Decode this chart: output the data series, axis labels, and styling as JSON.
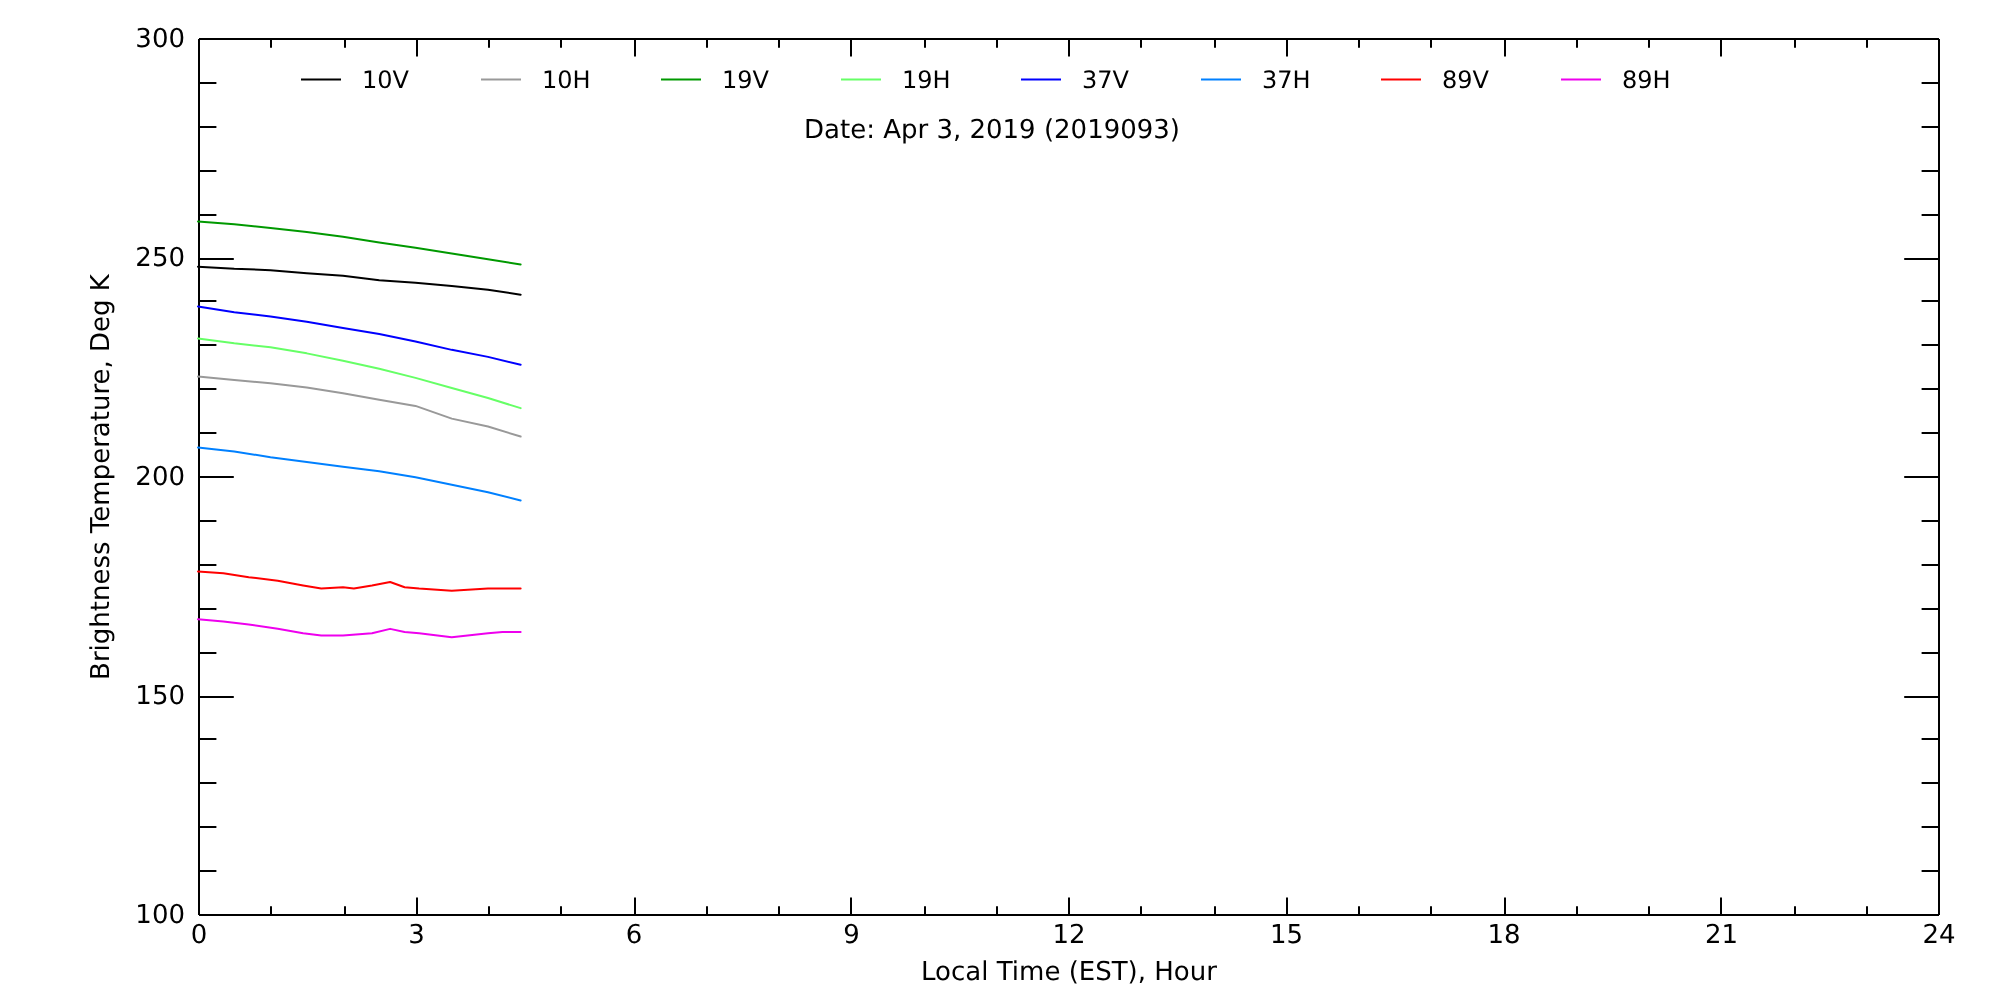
{
  "chart_data": {
    "type": "line",
    "title": "Date: Apr  3, 2019 (2019093)",
    "xlabel": "Local Time (EST), Hour",
    "ylabel": "Brightness Temperature, Deg K",
    "xlim": [
      0,
      24
    ],
    "ylim": [
      100,
      300
    ],
    "xticks": [
      0,
      {
        "value": 1,
        "label": null
      },
      {
        "value": 2,
        "label": null
      },
      3,
      {
        "value": 4,
        "label": null
      },
      {
        "value": 5,
        "label": null
      },
      6,
      {
        "value": 7,
        "label": null
      },
      {
        "value": 8,
        "label": null
      },
      9,
      {
        "value": 10,
        "label": null
      },
      {
        "value": 11,
        "label": null
      },
      12,
      {
        "value": 13,
        "label": null
      },
      {
        "value": 14,
        "label": null
      },
      15,
      {
        "value": 16,
        "label": null
      },
      {
        "value": 17,
        "label": null
      },
      18,
      {
        "value": 19,
        "label": null
      },
      {
        "value": 20,
        "label": null
      },
      21,
      {
        "value": 22,
        "label": null
      },
      {
        "value": 23,
        "label": null
      },
      24
    ],
    "yticks": [
      100,
      {
        "value": 110,
        "label": null
      },
      {
        "value": 120,
        "label": null
      },
      {
        "value": 130,
        "label": null
      },
      {
        "value": 140,
        "label": null
      },
      150,
      {
        "value": 160,
        "label": null
      },
      {
        "value": 170,
        "label": null
      },
      {
        "value": 180,
        "label": null
      },
      {
        "value": 190,
        "label": null
      },
      200,
      {
        "value": 210,
        "label": null
      },
      {
        "value": 220,
        "label": null
      },
      {
        "value": 230,
        "label": null
      },
      {
        "value": 240,
        "label": null
      },
      250,
      {
        "value": 260,
        "label": null
      },
      {
        "value": 270,
        "label": null
      },
      {
        "value": 280,
        "label": null
      },
      {
        "value": 290,
        "label": null
      },
      300
    ],
    "legend": "top",
    "line_style": "solid",
    "series": [
      {
        "name": "10V",
        "color": "#000000",
        "x": [
          0,
          0.5,
          1,
          1.5,
          2,
          2.5,
          3,
          3.5,
          4,
          4.45
        ],
        "values": [
          247.8,
          247.3,
          247.0,
          246.3,
          245.7,
          244.7,
          244.1,
          243.4,
          242.5,
          241.4
        ]
      },
      {
        "name": "10H",
        "color": "#999999",
        "x": [
          0,
          0.5,
          1,
          1.5,
          2,
          2.5,
          3,
          3.5,
          4,
          4.45
        ],
        "values": [
          222.7,
          221.9,
          221.2,
          220.2,
          218.9,
          217.4,
          216.0,
          213.1,
          211.3,
          209.0
        ]
      },
      {
        "name": "19V",
        "color": "#009900",
        "x": [
          0,
          0.5,
          1,
          1.5,
          2,
          2.5,
          3,
          3.5,
          4,
          4.45
        ],
        "values": [
          258.1,
          257.5,
          256.6,
          255.7,
          254.6,
          253.3,
          252.1,
          250.8,
          249.5,
          248.3
        ]
      },
      {
        "name": "19H",
        "color": "#66ff66",
        "x": [
          0,
          0.5,
          1,
          1.5,
          2,
          2.5,
          3,
          3.5,
          4,
          4.45
        ],
        "values": [
          231.4,
          230.3,
          229.4,
          228.0,
          226.3,
          224.5,
          222.4,
          220.1,
          217.8,
          215.5
        ]
      },
      {
        "name": "37V",
        "color": "#0000ff",
        "x": [
          0,
          0.5,
          1,
          1.5,
          2,
          2.5,
          3,
          3.5,
          4,
          4.45
        ],
        "values": [
          238.7,
          237.4,
          236.4,
          235.2,
          233.8,
          232.4,
          230.7,
          228.8,
          227.2,
          225.4
        ]
      },
      {
        "name": "37H",
        "color": "#0080ff",
        "x": [
          0,
          0.5,
          1,
          1.5,
          2,
          2.5,
          3,
          3.5,
          4,
          4.45
        ],
        "values": [
          206.5,
          205.6,
          204.3,
          203.2,
          202.1,
          201.1,
          199.7,
          198.0,
          196.3,
          194.4
        ]
      },
      {
        "name": "89V",
        "color": "#ff0000",
        "x": [
          0,
          0.35,
          0.7,
          1.1,
          1.45,
          1.7,
          2.0,
          2.15,
          2.4,
          2.65,
          2.85,
          3.05,
          3.5,
          4.0,
          4.45
        ],
        "values": [
          178.2,
          177.8,
          176.9,
          176.1,
          175.0,
          174.3,
          174.6,
          174.3,
          175.0,
          175.8,
          174.6,
          174.3,
          173.8,
          174.3,
          174.3
        ]
      },
      {
        "name": "89H",
        "color": "#ee00ee",
        "x": [
          0,
          0.35,
          0.7,
          1.1,
          1.45,
          1.7,
          2.0,
          2.4,
          2.65,
          2.85,
          3.05,
          3.5,
          4.0,
          4.2,
          4.45
        ],
        "values": [
          167.3,
          166.8,
          166.1,
          165.1,
          164.1,
          163.6,
          163.6,
          164.1,
          165.1,
          164.4,
          164.1,
          163.2,
          164.1,
          164.4,
          164.4
        ]
      }
    ]
  }
}
